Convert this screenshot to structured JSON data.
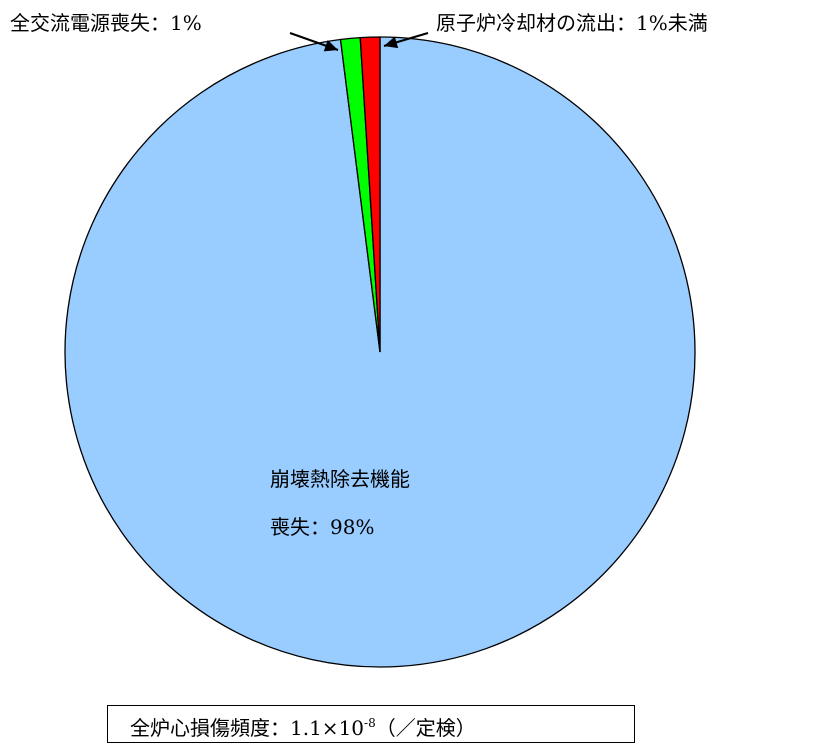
{
  "chart_data": {
    "type": "pie",
    "slices": [
      {
        "label": "崩壊熱除去機能",
        "label_line2": "喪失：98%",
        "value": 98,
        "color": "#99ccff"
      },
      {
        "label": "全交流電源喪失：1%",
        "value": 1,
        "color": "#00ff00"
      },
      {
        "label": "原子炉冷却材の流出：1%未満",
        "value": 1,
        "color": "#ff0000"
      }
    ],
    "total": {
      "prefix": "全炉心損傷頻度：1.1×10",
      "exponent": "-8",
      "suffix": "（／定検）"
    }
  }
}
